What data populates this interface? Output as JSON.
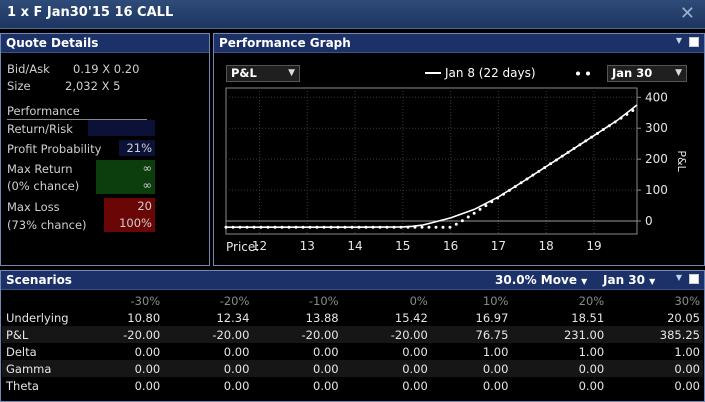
{
  "window": {
    "title": "1 x F Jan30'15 16 CALL"
  },
  "quote": {
    "title": "Quote Details",
    "bid_ask_label": "Bid/Ask",
    "bid_ask_value": "0.19 X 0.20",
    "size_label": "Size",
    "size_value": "2,032 X 5",
    "performance_label": "Performance",
    "return_risk_label": "Return/Risk",
    "profit_prob_label": "Profit Probability",
    "profit_prob_value": "21%",
    "max_return_label": "Max Return",
    "max_return_chance": "(0% chance)",
    "max_return_value": "∞",
    "max_return_value2": "∞",
    "max_loss_label": "Max Loss",
    "max_loss_chance": "(73% chance)",
    "max_loss_value": "20",
    "max_loss_pct": "100%",
    "colors": {
      "return_risk_bg": "#0c1138",
      "profit_bg": "#0c1138",
      "max_return_bg": "#0c3d0c",
      "max_loss_bg": "#6b0606"
    }
  },
  "graph": {
    "title": "Performance Graph",
    "metric_select": "P&L",
    "legend_solid": "Jan 8 (22 days)",
    "legend_dotted_date": "Jan 30",
    "price_label": "Price:"
  },
  "chart_data": {
    "type": "line",
    "x_ticks": [
      "12",
      "13",
      "14",
      "15",
      "16",
      "17",
      "18",
      "19"
    ],
    "y_ticks": [
      "400",
      "300",
      "200",
      "100",
      "0"
    ],
    "ylabel": "P&L",
    "xlim": [
      11.3,
      19.9
    ],
    "ylim": [
      -42,
      430
    ],
    "grid": true,
    "series": [
      {
        "name": "Jan 8 (22 days)",
        "style": "solid",
        "x": [
          11.3,
          12,
          13,
          14,
          15,
          15.2,
          15.42,
          15.6,
          16,
          16.5,
          17,
          17.5,
          18,
          18.5,
          19,
          19.5,
          19.9
        ],
        "y": [
          -20,
          -20,
          -20,
          -20,
          -19,
          -17,
          -13,
          -6,
          10,
          38,
          78,
          126,
          176,
          226,
          276,
          327,
          375
        ]
      },
      {
        "name": "Jan 30",
        "style": "dotted",
        "x": [
          11.3,
          12,
          13,
          14,
          15,
          15.42,
          16,
          16.2,
          16.5,
          17,
          17.5,
          18,
          18.5,
          19,
          19.5,
          19.9
        ],
        "y": [
          -20,
          -20,
          -20,
          -20,
          -20,
          -20,
          -20,
          -4,
          26,
          76,
          126,
          176,
          226,
          276,
          326,
          366
        ]
      }
    ]
  },
  "scenarios": {
    "title": "Scenarios",
    "move_select": "30.0% Move",
    "date_select": "Jan 30",
    "columns": [
      "-30%",
      "-20%",
      "-10%",
      "0%",
      "10%",
      "20%",
      "30%"
    ],
    "rows": [
      {
        "label": "Underlying",
        "values": [
          "10.80",
          "12.34",
          "13.88",
          "15.42",
          "16.97",
          "18.51",
          "20.05"
        ]
      },
      {
        "label": "P&L",
        "values": [
          "-20.00",
          "-20.00",
          "-20.00",
          "-20.00",
          "76.75",
          "231.00",
          "385.25"
        ]
      },
      {
        "label": "Delta",
        "values": [
          "0.00",
          "0.00",
          "0.00",
          "0.00",
          "1.00",
          "1.00",
          "1.00"
        ]
      },
      {
        "label": "Gamma",
        "values": [
          "0.00",
          "0.00",
          "0.00",
          "0.00",
          "0.00",
          "0.00",
          "0.00"
        ]
      },
      {
        "label": "Theta",
        "values": [
          "0.00",
          "0.00",
          "0.00",
          "0.00",
          "0.00",
          "0.00",
          "0.00"
        ]
      }
    ]
  }
}
